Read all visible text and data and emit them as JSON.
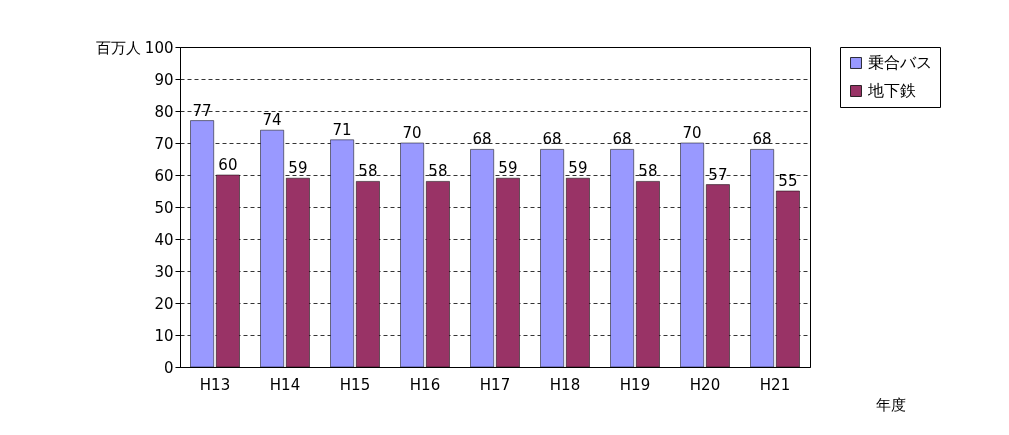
{
  "chart_data": {
    "type": "bar",
    "ylabel": "百万人",
    "xlabel": "年度",
    "categories": [
      "H13",
      "H14",
      "H15",
      "H16",
      "H17",
      "H18",
      "H19",
      "H20",
      "H21"
    ],
    "series": [
      {
        "name": "乗合バス",
        "color": "#9999ff",
        "values": [
          77,
          74,
          71,
          70,
          68,
          68,
          68,
          70,
          68
        ]
      },
      {
        "name": "地下鉄",
        "color": "#993366",
        "values": [
          60,
          59,
          58,
          58,
          59,
          59,
          58,
          57,
          55
        ]
      }
    ],
    "ylim": [
      0,
      100
    ],
    "yticks": [
      0,
      10,
      20,
      30,
      40,
      50,
      60,
      70,
      80,
      90,
      100
    ],
    "grid": "y",
    "legend": "right",
    "data_labels": true
  }
}
